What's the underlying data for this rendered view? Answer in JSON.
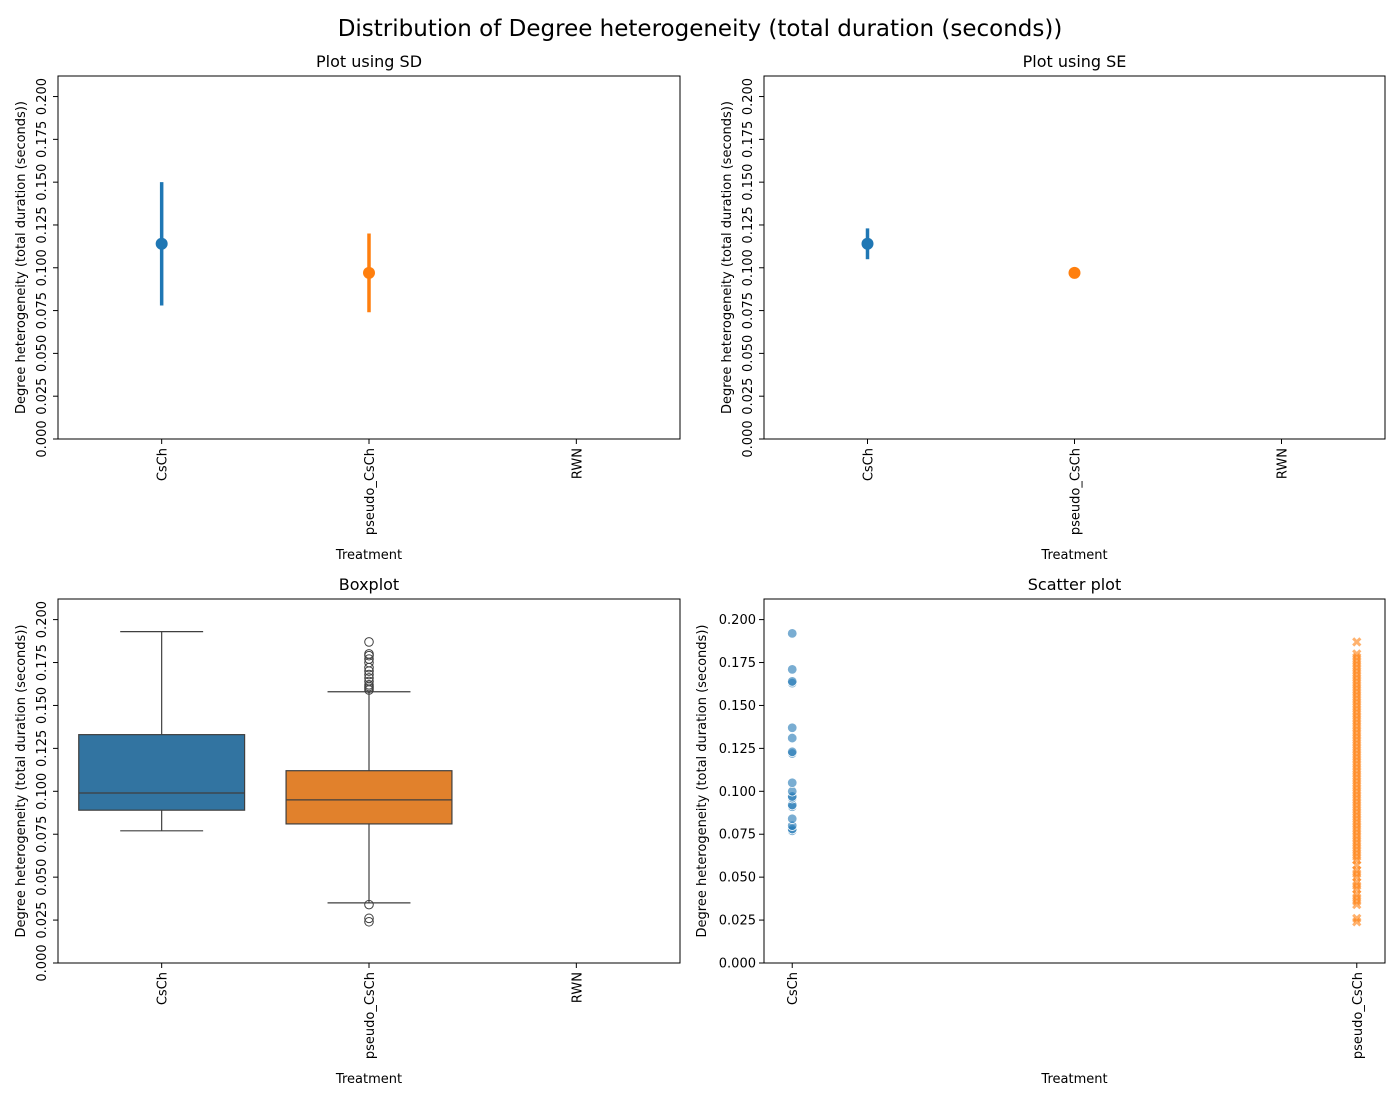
{
  "figure": {
    "title": "Distribution of Degree heterogeneity (total duration (seconds))"
  },
  "colors": {
    "csch": "#1f77b4",
    "pseudo_csch": "#ff7f0e",
    "box_csch": "#3274a1",
    "box_pseudo": "#e1812c",
    "box_line": "#3f3f3f"
  },
  "chart_data": [
    {
      "id": "sd",
      "type": "scatter",
      "title": "Plot using SD",
      "xlabel": "Treatment",
      "ylabel": "Degree heterogeneity (total duration (seconds))",
      "categories": [
        "CsCh",
        "pseudo_CsCh",
        "RWN"
      ],
      "ylim": [
        0.0,
        0.212
      ],
      "yticks": [
        0.0,
        0.025,
        0.05,
        0.075,
        0.1,
        0.125,
        0.15,
        0.175,
        0.2
      ],
      "yticklabels": [
        "0.000",
        "0.025",
        "0.050",
        "0.075",
        "0.100",
        "0.125",
        "0.150",
        "0.175",
        "0.200"
      ],
      "ytick_rotation": "vertical",
      "points": [
        {
          "category": "CsCh",
          "mean": 0.114,
          "err_low": 0.078,
          "err_high": 0.15
        },
        {
          "category": "pseudo_CsCh",
          "mean": 0.097,
          "err_low": 0.074,
          "err_high": 0.12
        }
      ]
    },
    {
      "id": "se",
      "type": "scatter",
      "title": "Plot using SE",
      "xlabel": "Treatment",
      "ylabel": "Degree heterogeneity (total duration (seconds))",
      "categories": [
        "CsCh",
        "pseudo_CsCh",
        "RWN"
      ],
      "ylim": [
        0.0,
        0.212
      ],
      "yticks": [
        0.0,
        0.025,
        0.05,
        0.075,
        0.1,
        0.125,
        0.15,
        0.175,
        0.2
      ],
      "yticklabels": [
        "0.000",
        "0.025",
        "0.050",
        "0.075",
        "0.100",
        "0.125",
        "0.150",
        "0.175",
        "0.200"
      ],
      "ytick_rotation": "vertical",
      "points": [
        {
          "category": "CsCh",
          "mean": 0.114,
          "err_low": 0.105,
          "err_high": 0.123
        },
        {
          "category": "pseudo_CsCh",
          "mean": 0.097,
          "err_low": 0.096,
          "err_high": 0.098
        }
      ]
    },
    {
      "id": "box",
      "type": "box",
      "title": "Boxplot",
      "xlabel": "Treatment",
      "ylabel": "Degree heterogeneity (total duration (seconds))",
      "categories": [
        "CsCh",
        "pseudo_CsCh",
        "RWN"
      ],
      "ylim": [
        0.0,
        0.212
      ],
      "yticks": [
        0.0,
        0.025,
        0.05,
        0.075,
        0.1,
        0.125,
        0.15,
        0.175,
        0.2
      ],
      "yticklabels": [
        "0.000",
        "0.025",
        "0.050",
        "0.075",
        "0.100",
        "0.125",
        "0.150",
        "0.175",
        "0.200"
      ],
      "ytick_rotation": "vertical",
      "boxes": [
        {
          "category": "CsCh",
          "whislo": 0.077,
          "q1": 0.089,
          "med": 0.099,
          "q3": 0.133,
          "whishi": 0.193,
          "fliers": []
        },
        {
          "category": "pseudo_CsCh",
          "whislo": 0.035,
          "q1": 0.081,
          "med": 0.095,
          "q3": 0.112,
          "whishi": 0.158,
          "fliers": [
            0.034,
            0.026,
            0.024,
            0.159,
            0.16,
            0.161,
            0.162,
            0.164,
            0.166,
            0.168,
            0.17,
            0.172,
            0.175,
            0.177,
            0.179,
            0.18,
            0.187
          ]
        }
      ]
    },
    {
      "id": "scatter",
      "type": "scatter",
      "title": "Scatter plot",
      "xlabel": "Treatment",
      "ylabel": "Degree heterogeneity (total duration (seconds))",
      "categories": [
        "CsCh",
        "pseudo_CsCh"
      ],
      "ylim": [
        0.0,
        0.212
      ],
      "yticks": [
        0.0,
        0.025,
        0.05,
        0.075,
        0.1,
        0.125,
        0.15,
        0.175,
        0.2
      ],
      "yticklabels": [
        "0.000",
        "0.025",
        "0.050",
        "0.075",
        "0.100",
        "0.125",
        "0.150",
        "0.175",
        "0.200"
      ],
      "ytick_rotation": "horizontal",
      "series": [
        {
          "category": "CsCh",
          "marker": "circle",
          "values": [
            0.077,
            0.078,
            0.08,
            0.084,
            0.091,
            0.092,
            0.096,
            0.097,
            0.1,
            0.105,
            0.122,
            0.123,
            0.131,
            0.137,
            0.163,
            0.164,
            0.171,
            0.192
          ]
        },
        {
          "category": "pseudo_CsCh",
          "marker": "x",
          "values": [
            0.024,
            0.026,
            0.034,
            0.036,
            0.038,
            0.04,
            0.043,
            0.045,
            0.047,
            0.05,
            0.052,
            0.054,
            0.057,
            0.06,
            0.062,
            0.064,
            0.066,
            0.068,
            0.07,
            0.072,
            0.074,
            0.076,
            0.078,
            0.08,
            0.082,
            0.084,
            0.086,
            0.088,
            0.09,
            0.092,
            0.094,
            0.096,
            0.098,
            0.1,
            0.102,
            0.104,
            0.106,
            0.108,
            0.11,
            0.112,
            0.114,
            0.116,
            0.118,
            0.12,
            0.122,
            0.124,
            0.126,
            0.128,
            0.13,
            0.132,
            0.134,
            0.136,
            0.138,
            0.14,
            0.142,
            0.144,
            0.146,
            0.148,
            0.15,
            0.152,
            0.154,
            0.156,
            0.158,
            0.16,
            0.162,
            0.164,
            0.166,
            0.168,
            0.17,
            0.172,
            0.174,
            0.176,
            0.178,
            0.18,
            0.187
          ]
        }
      ]
    }
  ]
}
